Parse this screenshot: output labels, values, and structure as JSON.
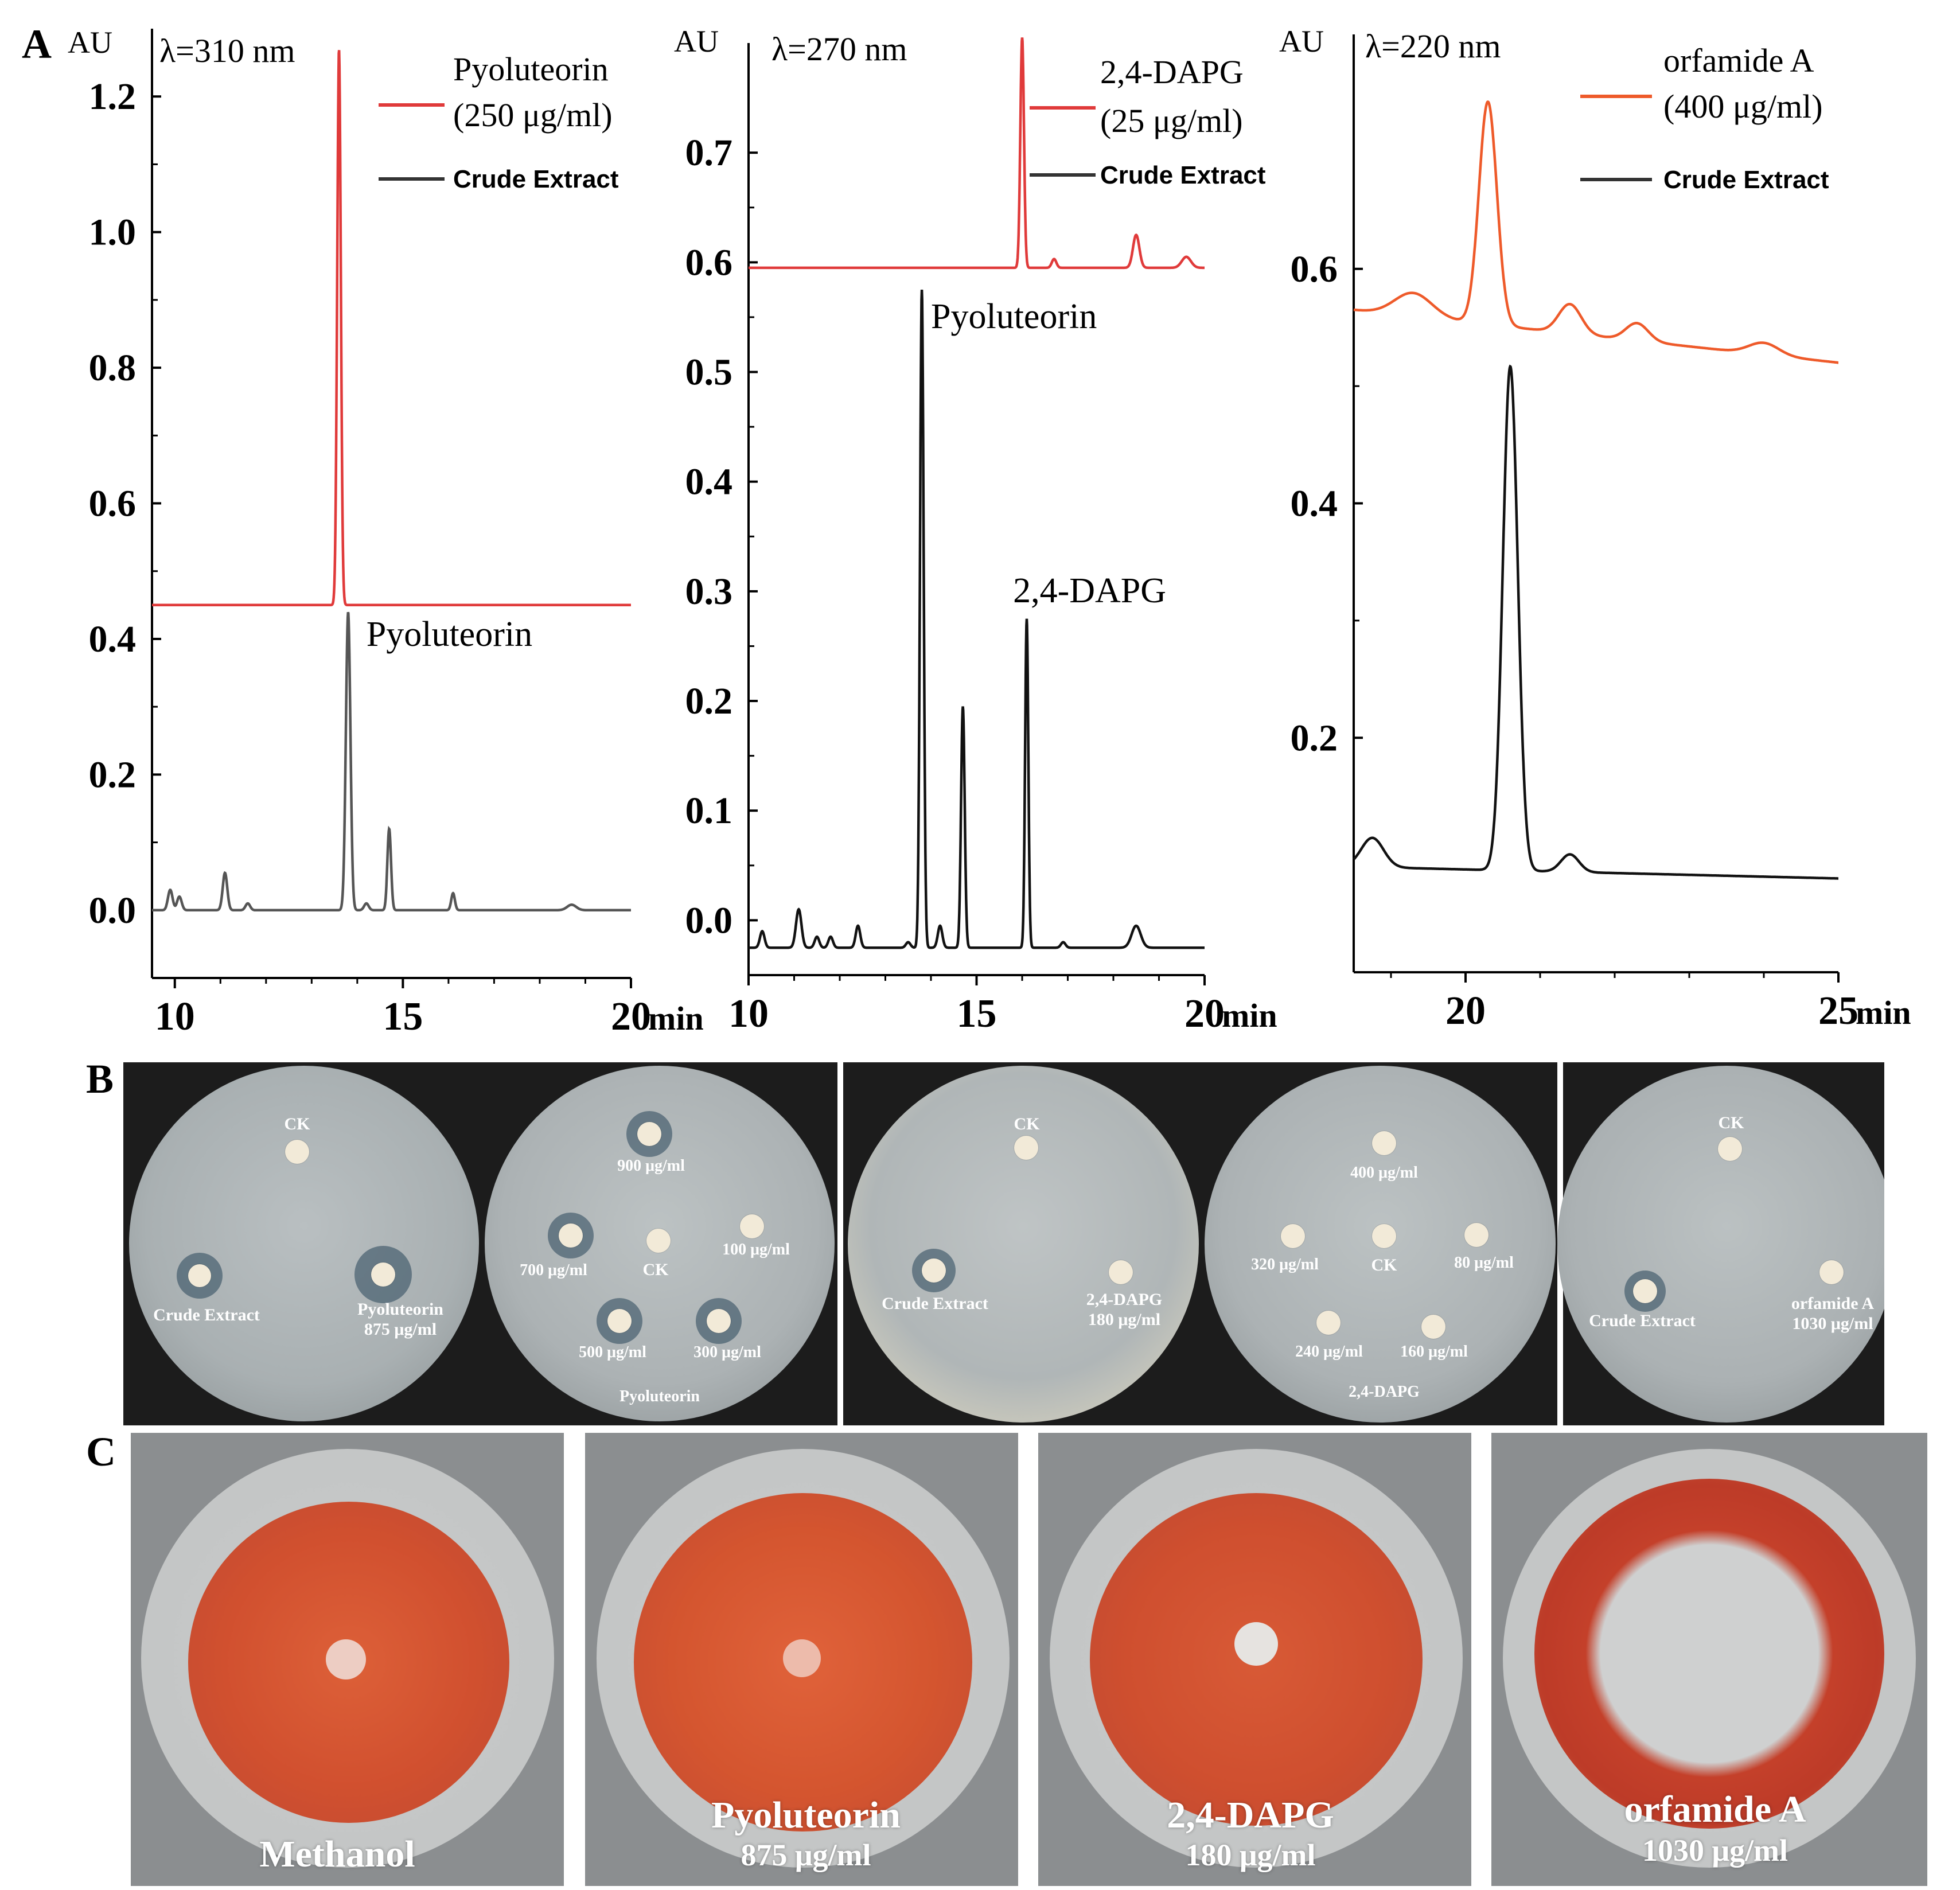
{
  "panel_letters": {
    "a": "A",
    "b": "B",
    "c": "C"
  },
  "colors": {
    "standard_red": "#e03a3a",
    "standard_orange": "#ee5a2a",
    "crude_gray": "#555555",
    "crude_black": "#111111"
  },
  "chart_data": [
    {
      "type": "line",
      "title": "λ=310 nm",
      "ylabel": "AU",
      "xlabel": "min",
      "xlim": [
        9.5,
        20
      ],
      "ylim": [
        -0.1,
        1.3
      ],
      "xticks": [
        10,
        15,
        20
      ],
      "yticks": [
        0.0,
        0.2,
        0.4,
        0.6,
        0.8,
        1.0,
        1.2
      ],
      "ytick_labels": [
        "0.0",
        "0.2",
        "0.4",
        "0.6",
        "0.8",
        "1.0",
        "1.2"
      ],
      "legend": {
        "standard": "Pyoluteorin",
        "standard_conc": "(250 μg/ml)",
        "crude": "Crude Extract"
      },
      "annotations": [
        {
          "text": "Pyoluteorin",
          "x": 14.2,
          "y": 0.39
        }
      ],
      "series": [
        {
          "name": "Pyoluteorin standard",
          "color": "#e03a3a",
          "baseline": 0.45,
          "peaks": [
            {
              "x": 13.6,
              "h": 0.82,
              "w": 0.04
            }
          ]
        },
        {
          "name": "Crude Extract",
          "color": "#555555",
          "baseline": 0.0,
          "peaks": [
            {
              "x": 9.9,
              "h": 0.03,
              "w": 0.05
            },
            {
              "x": 10.1,
              "h": 0.02,
              "w": 0.05
            },
            {
              "x": 11.1,
              "h": 0.055,
              "w": 0.05
            },
            {
              "x": 11.6,
              "h": 0.01,
              "w": 0.05
            },
            {
              "x": 13.8,
              "h": 0.44,
              "w": 0.05
            },
            {
              "x": 14.2,
              "h": 0.01,
              "w": 0.05
            },
            {
              "x": 14.7,
              "h": 0.12,
              "w": 0.04
            },
            {
              "x": 16.1,
              "h": 0.025,
              "w": 0.04
            },
            {
              "x": 18.7,
              "h": 0.008,
              "w": 0.1
            }
          ]
        }
      ]
    },
    {
      "type": "line",
      "title": "λ=270 nm",
      "ylabel": "AU",
      "xlabel": "min",
      "xlim": [
        10,
        20
      ],
      "ylim": [
        -0.05,
        0.8
      ],
      "xticks": [
        10,
        15,
        20
      ],
      "yticks": [
        0.0,
        0.1,
        0.2,
        0.3,
        0.4,
        0.5,
        0.6,
        0.7
      ],
      "ytick_labels": [
        "0.0",
        "0.1",
        "0.2",
        "0.3",
        "0.4",
        "0.5",
        "0.6",
        "0.7"
      ],
      "legend": {
        "standard": "2,4-DAPG",
        "standard_conc": "(25 μg/ml)",
        "crude": "Crude Extract"
      },
      "annotations": [
        {
          "text": "Pyoluteorin",
          "x": 14.0,
          "y": 0.54
        },
        {
          "text": "2,4-DAPG",
          "x": 15.8,
          "y": 0.29
        }
      ],
      "series": [
        {
          "name": "2,4-DAPG standard",
          "color": "#e03a3a",
          "baseline": 0.595,
          "peaks": [
            {
              "x": 16.0,
              "h": 0.21,
              "w": 0.04
            },
            {
              "x": 16.7,
              "h": 0.008,
              "w": 0.05
            },
            {
              "x": 18.5,
              "h": 0.03,
              "w": 0.07
            },
            {
              "x": 19.6,
              "h": 0.01,
              "w": 0.1
            }
          ]
        },
        {
          "name": "Crude Extract",
          "color": "#111111",
          "baseline": -0.025,
          "peaks": [
            {
              "x": 10.3,
              "h": 0.015,
              "w": 0.05
            },
            {
              "x": 11.1,
              "h": 0.035,
              "w": 0.06
            },
            {
              "x": 11.5,
              "h": 0.01,
              "w": 0.05
            },
            {
              "x": 11.8,
              "h": 0.01,
              "w": 0.05
            },
            {
              "x": 12.4,
              "h": 0.02,
              "w": 0.05
            },
            {
              "x": 13.5,
              "h": 0.005,
              "w": 0.05
            },
            {
              "x": 13.8,
              "h": 0.6,
              "w": 0.04
            },
            {
              "x": 14.2,
              "h": 0.02,
              "w": 0.05
            },
            {
              "x": 14.7,
              "h": 0.22,
              "w": 0.04
            },
            {
              "x": 16.1,
              "h": 0.3,
              "w": 0.035
            },
            {
              "x": 16.9,
              "h": 0.005,
              "w": 0.05
            },
            {
              "x": 18.5,
              "h": 0.02,
              "w": 0.1
            }
          ]
        }
      ]
    },
    {
      "type": "line",
      "title": "λ=220 nm",
      "ylabel": "AU",
      "xlabel": "min",
      "xlim": [
        18.5,
        25
      ],
      "ylim": [
        0.0,
        0.8
      ],
      "xticks": [
        20,
        25
      ],
      "yticks": [
        0.2,
        0.4,
        0.6
      ],
      "ytick_labels": [
        "0.2",
        "0.4",
        "0.6"
      ],
      "legend": {
        "standard": "orfamide A",
        "standard_conc": "(400  μg/ml)",
        "crude": "Crude Extract"
      },
      "annotations": [],
      "series": [
        {
          "name": "orfamide A standard",
          "color": "#ee5a2a",
          "baseline": 0.565,
          "peaks": [
            {
              "x": 19.3,
              "h": 0.02,
              "w": 0.25
            },
            {
              "x": 20.3,
              "h": 0.19,
              "w": 0.12
            },
            {
              "x": 21.4,
              "h": 0.025,
              "w": 0.15
            },
            {
              "x": 22.3,
              "h": 0.015,
              "w": 0.15
            },
            {
              "x": 24.0,
              "h": 0.01,
              "w": 0.2
            }
          ]
        },
        {
          "name": "Crude Extract",
          "color": "#111111",
          "baseline": 0.09,
          "peaks": [
            {
              "x": 18.75,
              "h": 0.025,
              "w": 0.15
            },
            {
              "x": 20.6,
              "h": 0.43,
              "w": 0.1
            },
            {
              "x": 21.4,
              "h": 0.015,
              "w": 0.12
            }
          ]
        }
      ]
    }
  ],
  "panel_b": {
    "plates": [
      {
        "labels": {
          "ck": "CK",
          "crude": "Crude Extract",
          "std": "Pyoluteorin",
          "std_conc": "875 μg/ml"
        }
      },
      {
        "labels": {
          "c900": "900 μg/ml",
          "c700": "700 μg/ml",
          "ck": "CK",
          "c100": "100 μg/ml",
          "c500": "500 μg/ml",
          "c300": "300 μg/ml",
          "title": "Pyoluteorin"
        }
      },
      {
        "labels": {
          "ck": "CK",
          "crude": "Crude Extract",
          "std": "2,4-DAPG",
          "std_conc": "180 μg/ml"
        }
      },
      {
        "labels": {
          "c400": "400 μg/ml",
          "c320": "320 μg/ml",
          "ck": "CK",
          "c80": "80 μg/ml",
          "c240": "240 μg/ml",
          "c160": "160 μg/ml",
          "title": "2,4-DAPG"
        }
      },
      {
        "labels": {
          "ck": "CK",
          "crude": "Crude Extract",
          "std": "orfamide A",
          "std_conc": "1030 μg/ml"
        }
      }
    ]
  },
  "panel_c": {
    "plates": [
      {
        "name": "Methanol",
        "conc": ""
      },
      {
        "name": "Pyoluteorin",
        "conc": "875 μg/ml"
      },
      {
        "name": "2,4-DAPG",
        "conc": "180 μg/ml"
      },
      {
        "name": "orfamide A",
        "conc": "1030 μg/ml"
      }
    ]
  }
}
